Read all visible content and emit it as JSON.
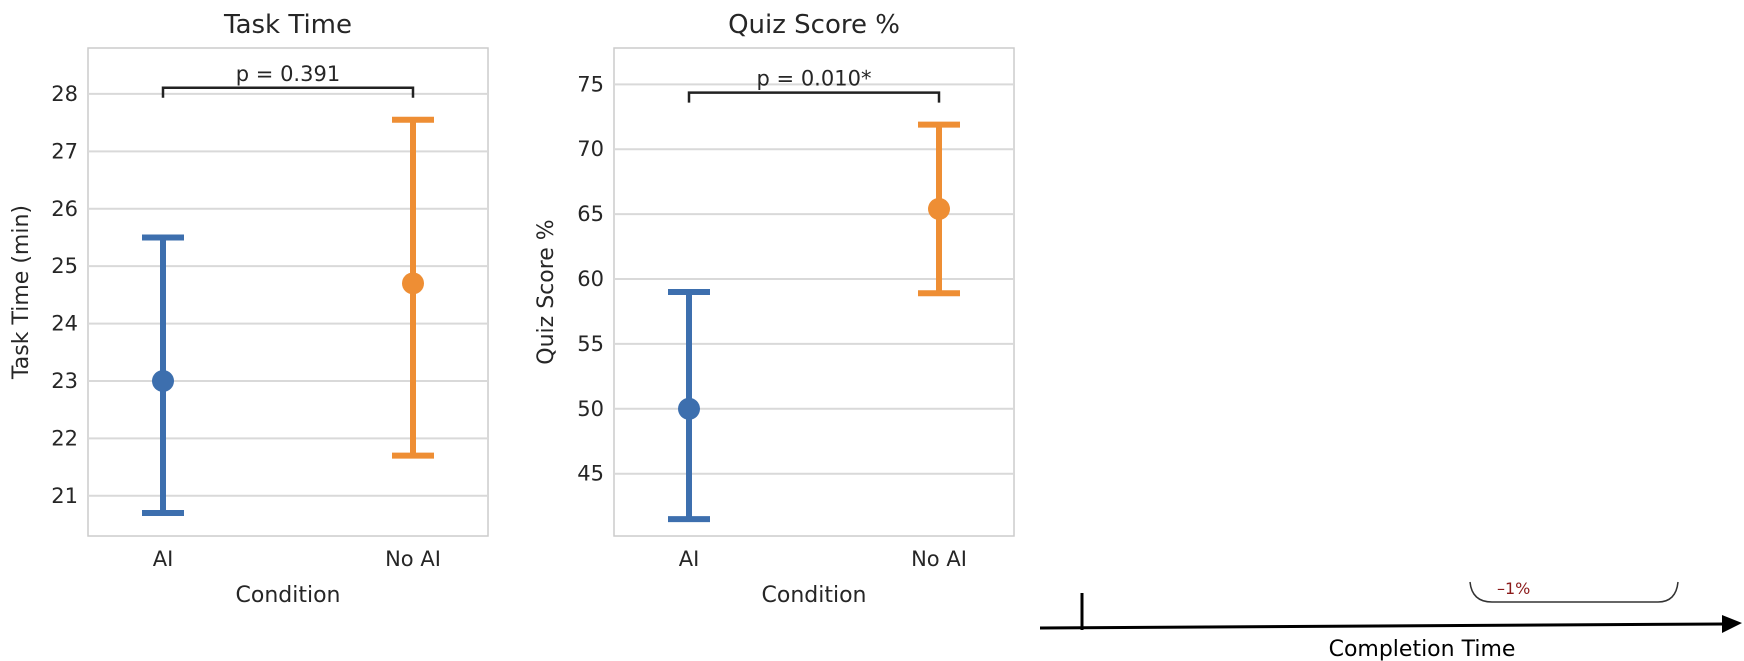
{
  "chart_data": [
    {
      "type": "errorbar",
      "title": "Task Time",
      "xlabel": "Condition",
      "ylabel": "Task Time (min)",
      "ylim": [
        20.3,
        28.8
      ],
      "yticks": [
        21,
        22,
        23,
        24,
        25,
        26,
        27,
        28
      ],
      "ytick_labels": [
        "21",
        "22",
        "23",
        "24",
        "25",
        "26",
        "27",
        "28"
      ],
      "categories": [
        "AI",
        "No AI"
      ],
      "grid": true,
      "series": [
        {
          "category": "AI",
          "mean": 23.0,
          "lower": 20.7,
          "upper": 25.5,
          "color": "#3d6fae"
        },
        {
          "category": "No AI",
          "mean": 24.7,
          "lower": 21.7,
          "upper": 27.55,
          "color": "#ee8e34"
        }
      ],
      "annotation": "p = 0.391"
    },
    {
      "type": "errorbar",
      "title": "Quiz Score %",
      "xlabel": "Condition",
      "ylabel": "Quiz Score %",
      "ylim": [
        40.2,
        77.8
      ],
      "yticks": [
        45,
        50,
        55,
        60,
        65,
        70,
        75
      ],
      "ytick_labels": [
        "45",
        "50",
        "55",
        "60",
        "65",
        "70",
        "75"
      ],
      "categories": [
        "AI",
        "No AI"
      ],
      "grid": true,
      "series": [
        {
          "category": "AI",
          "mean": 50.0,
          "lower": 41.5,
          "upper": 59.0,
          "color": "#3d6fae"
        },
        {
          "category": "No AI",
          "mean": 65.4,
          "lower": 58.9,
          "upper": 71.9,
          "color": "#ee8e34"
        }
      ],
      "annotation": "p = 0.010*"
    }
  ],
  "timeline": {
    "axis_label": "Completion Time",
    "partial_label": "–1%"
  }
}
